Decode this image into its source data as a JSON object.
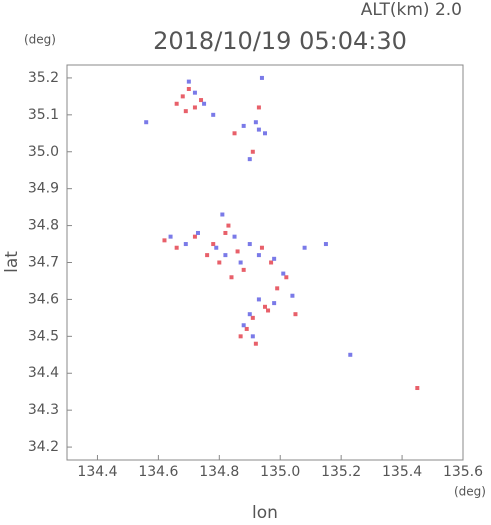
{
  "chart_data": {
    "type": "scatter",
    "title": "2018/10/19 05:04:30",
    "subtitle": "ALT(km) 2.0",
    "y_unit": "(deg)",
    "x_unit": "(deg)",
    "x_label": "lon",
    "y_label": "lat",
    "xlim": [
      134.3,
      135.6
    ],
    "ylim": [
      34.165,
      35.235
    ],
    "xticks": [
      134.4,
      134.6,
      134.8,
      {
        "value": 135,
        "label": "135.0"
      },
      135.2,
      135.4,
      135.6
    ],
    "yticks": [
      34.2,
      34.3,
      34.4,
      34.5,
      34.6,
      34.7,
      34.8,
      34.9,
      {
        "value": 35,
        "label": "35.0"
      },
      35.1,
      35.2
    ],
    "series": [
      {
        "color": "#e8606a",
        "x": [
          134.66,
          134.68,
          134.7,
          134.72,
          134.74,
          134.69,
          134.85,
          134.91,
          134.93,
          134.62,
          134.66,
          134.72,
          134.76,
          134.8,
          134.83,
          134.86,
          134.88,
          134.94,
          134.97,
          135.02,
          134.99,
          134.95,
          134.91,
          134.87,
          134.89,
          134.92,
          134.96,
          135.05,
          134.78,
          135.45,
          134.84,
          134.82
        ],
        "y": [
          35.13,
          35.15,
          35.17,
          35.12,
          35.14,
          35.11,
          35.05,
          35.0,
          35.12,
          34.76,
          34.74,
          34.77,
          34.72,
          34.7,
          34.8,
          34.73,
          34.68,
          34.74,
          34.7,
          34.66,
          34.63,
          34.58,
          34.55,
          34.5,
          34.52,
          34.48,
          34.57,
          34.56,
          34.75,
          34.36,
          34.66,
          34.78
        ]
      },
      {
        "color": "#7a7ae8",
        "x": [
          134.56,
          134.7,
          134.72,
          134.75,
          134.78,
          134.92,
          134.93,
          134.94,
          134.9,
          134.88,
          134.95,
          134.64,
          134.69,
          134.73,
          134.79,
          134.81,
          134.85,
          134.9,
          134.93,
          134.98,
          135.01,
          135.04,
          134.98,
          134.93,
          134.9,
          134.88,
          134.91,
          135.08,
          135.15,
          135.23,
          134.82,
          134.87
        ],
        "y": [
          35.08,
          35.19,
          35.16,
          35.13,
          35.1,
          35.08,
          35.06,
          35.2,
          34.98,
          35.07,
          35.05,
          34.77,
          34.75,
          34.78,
          34.74,
          34.83,
          34.77,
          34.75,
          34.72,
          34.71,
          34.67,
          34.61,
          34.59,
          34.6,
          34.56,
          34.53,
          34.5,
          34.74,
          34.75,
          34.45,
          34.72,
          34.7
        ]
      }
    ]
  }
}
